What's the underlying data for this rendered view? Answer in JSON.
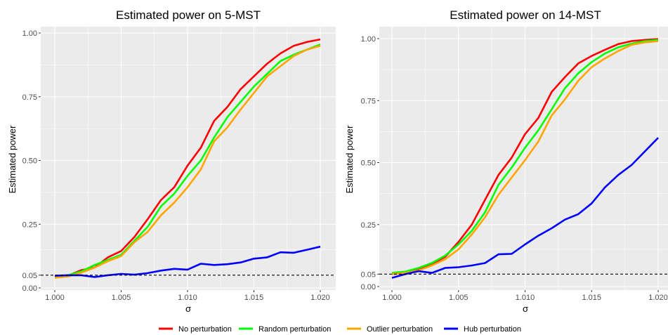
{
  "x": [
    1.0,
    1.001,
    1.002,
    1.003,
    1.004,
    1.005,
    1.006,
    1.007,
    1.008,
    1.009,
    1.01,
    1.011,
    1.012,
    1.013,
    1.014,
    1.015,
    1.016,
    1.017,
    1.018,
    1.019,
    1.02
  ],
  "colors": {
    "No perturbation": "#ff0000",
    "Random perturbation": "#00ff00",
    "Outlier perturbation": "#ffa500",
    "Hub perturbation": "#0000ff",
    "panel_bg": "#ebebeb",
    "grid": "#ffffff"
  },
  "legend": {
    "items": [
      "No perturbation",
      "Random perturbation",
      "Outlier perturbation",
      "Hub perturbation"
    ]
  },
  "chart_data": [
    {
      "type": "line",
      "title": "Estimated power on 5-MST",
      "xlabel": "σ",
      "ylabel": "Estimated power",
      "xlim": [
        1.0,
        1.02
      ],
      "ylim": [
        0.0,
        1.0
      ],
      "x_ticks": [
        "1.000",
        "1.005",
        "1.010",
        "1.015",
        "1.020"
      ],
      "y_ticks": [
        "0.00",
        "0.05",
        "0.25",
        "0.50",
        "0.75",
        "1.00"
      ],
      "reference_line": {
        "y": 0.05,
        "style": "dashed"
      },
      "series": [
        {
          "name": "No perturbation",
          "values": [
            0.045,
            0.048,
            0.07,
            0.08,
            0.12,
            0.145,
            0.2,
            0.27,
            0.345,
            0.395,
            0.48,
            0.55,
            0.655,
            0.71,
            0.78,
            0.83,
            0.88,
            0.92,
            0.95,
            0.965,
            0.975
          ]
        },
        {
          "name": "Random perturbation",
          "values": [
            0.042,
            0.05,
            0.065,
            0.09,
            0.11,
            0.13,
            0.185,
            0.24,
            0.32,
            0.37,
            0.44,
            0.5,
            0.59,
            0.67,
            0.73,
            0.79,
            0.84,
            0.89,
            0.915,
            0.935,
            0.955
          ]
        },
        {
          "name": "Outlier perturbation",
          "values": [
            0.04,
            0.045,
            0.06,
            0.08,
            0.105,
            0.125,
            0.18,
            0.22,
            0.285,
            0.335,
            0.395,
            0.465,
            0.575,
            0.63,
            0.7,
            0.765,
            0.83,
            0.87,
            0.91,
            0.935,
            0.95
          ]
        },
        {
          "name": "Hub perturbation",
          "values": [
            0.048,
            0.05,
            0.05,
            0.043,
            0.05,
            0.055,
            0.052,
            0.058,
            0.068,
            0.075,
            0.072,
            0.095,
            0.09,
            0.093,
            0.1,
            0.115,
            0.12,
            0.14,
            0.138,
            0.15,
            0.162
          ]
        }
      ]
    },
    {
      "type": "line",
      "title": "Estimated power on 14-MST",
      "xlabel": "σ",
      "ylabel": "Estimated power",
      "xlim": [
        1.0,
        1.02
      ],
      "ylim": [
        0.0,
        1.0
      ],
      "x_ticks": [
        "1.000",
        "1.005",
        "1.010",
        "1.015",
        "1.020"
      ],
      "y_ticks": [
        "0.00",
        "0.05",
        "0.25",
        "0.50",
        "0.75",
        "1.00"
      ],
      "reference_line": {
        "y": 0.05,
        "style": "dashed"
      },
      "series": [
        {
          "name": "No perturbation",
          "values": [
            0.05,
            0.055,
            0.07,
            0.09,
            0.12,
            0.18,
            0.25,
            0.35,
            0.45,
            0.52,
            0.615,
            0.68,
            0.785,
            0.845,
            0.9,
            0.93,
            0.955,
            0.978,
            0.99,
            0.995,
            0.998
          ]
        },
        {
          "name": "Random perturbation",
          "values": [
            0.055,
            0.06,
            0.075,
            0.095,
            0.125,
            0.17,
            0.225,
            0.3,
            0.41,
            0.48,
            0.56,
            0.63,
            0.715,
            0.8,
            0.86,
            0.905,
            0.94,
            0.965,
            0.98,
            0.99,
            0.995
          ]
        },
        {
          "name": "Outlier perturbation",
          "values": [
            0.05,
            0.055,
            0.065,
            0.085,
            0.11,
            0.15,
            0.21,
            0.28,
            0.37,
            0.44,
            0.51,
            0.585,
            0.69,
            0.755,
            0.83,
            0.885,
            0.92,
            0.95,
            0.975,
            0.985,
            0.99
          ]
        },
        {
          "name": "Hub perturbation",
          "values": [
            0.035,
            0.05,
            0.062,
            0.055,
            0.075,
            0.078,
            0.085,
            0.095,
            0.13,
            0.132,
            0.17,
            0.205,
            0.235,
            0.27,
            0.292,
            0.335,
            0.4,
            0.45,
            0.49,
            0.545,
            0.6
          ]
        }
      ]
    }
  ]
}
